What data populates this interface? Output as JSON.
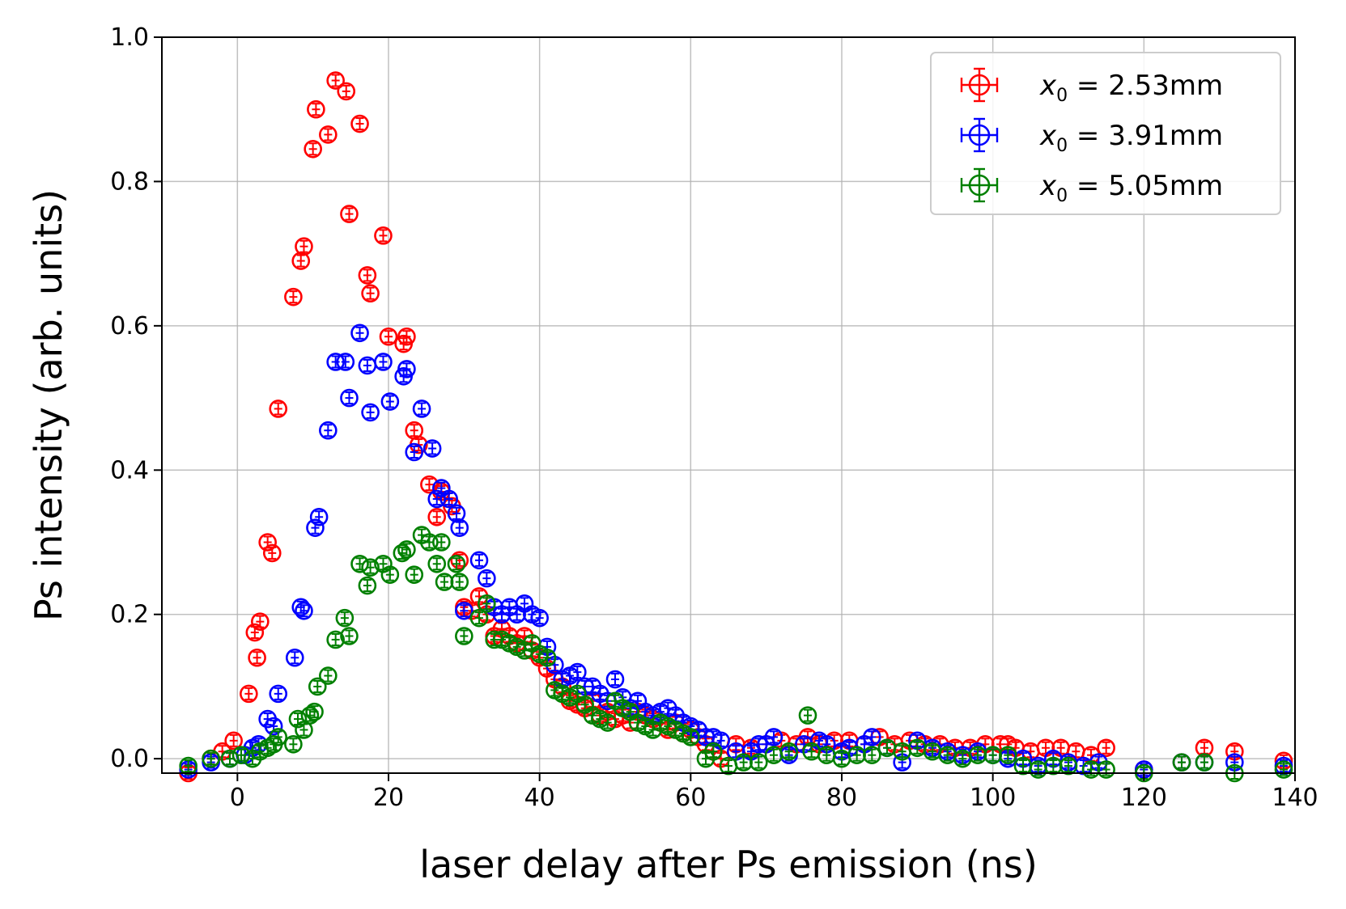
{
  "chart_data": {
    "type": "scatter",
    "title": "",
    "xlabel": "laser delay after Ps emission (ns)",
    "ylabel": "Ps intensity (arb. units)",
    "xlim": [
      -10,
      140
    ],
    "ylim": [
      -0.02,
      1.0
    ],
    "xticks": [
      0,
      20,
      40,
      60,
      80,
      100,
      120,
      140
    ],
    "yticks": [
      0.0,
      0.2,
      0.4,
      0.6,
      0.8,
      1.0
    ],
    "xtick_labels": [
      "0",
      "20",
      "40",
      "60",
      "80",
      "100",
      "120",
      "140"
    ],
    "ytick_labels": [
      "0.0",
      "0.2",
      "0.4",
      "0.6",
      "0.8",
      "1.0"
    ],
    "grid": true,
    "legend_position": "top-right",
    "series": [
      {
        "name": "x0 = 2.53mm",
        "label_var": "x",
        "label_sub": "0",
        "label_rest": " = 2.53mm",
        "color": "#ff0000",
        "points": [
          [
            -6.5,
            -0.02
          ],
          [
            -3.5,
            0.0
          ],
          [
            -2,
            0.01
          ],
          [
            -0.5,
            0.025
          ],
          [
            1.5,
            0.09
          ],
          [
            2.3,
            0.175
          ],
          [
            2.6,
            0.14
          ],
          [
            3,
            0.19
          ],
          [
            4,
            0.3
          ],
          [
            4.6,
            0.285
          ],
          [
            5.4,
            0.485
          ],
          [
            7.4,
            0.64
          ],
          [
            8.4,
            0.69
          ],
          [
            8.8,
            0.71
          ],
          [
            10,
            0.845
          ],
          [
            10.4,
            0.9
          ],
          [
            12,
            0.865
          ],
          [
            13,
            0.94
          ],
          [
            14.4,
            0.925
          ],
          [
            14.8,
            0.755
          ],
          [
            16.2,
            0.88
          ],
          [
            17.2,
            0.67
          ],
          [
            17.6,
            0.645
          ],
          [
            19.3,
            0.725
          ],
          [
            20,
            0.585
          ],
          [
            22,
            0.575
          ],
          [
            22.4,
            0.585
          ],
          [
            23.4,
            0.455
          ],
          [
            24,
            0.435
          ],
          [
            25.4,
            0.38
          ],
          [
            26.4,
            0.335
          ],
          [
            27,
            0.37
          ],
          [
            28.4,
            0.35
          ],
          [
            29.4,
            0.275
          ],
          [
            30,
            0.21
          ],
          [
            31,
            0.205
          ],
          [
            32,
            0.225
          ],
          [
            33,
            0.2
          ],
          [
            34,
            0.17
          ],
          [
            35,
            0.18
          ],
          [
            36,
            0.17
          ],
          [
            37,
            0.16
          ],
          [
            38,
            0.17
          ],
          [
            39,
            0.15
          ],
          [
            40,
            0.14
          ],
          [
            41,
            0.125
          ],
          [
            42,
            0.11
          ],
          [
            43,
            0.1
          ],
          [
            44,
            0.08
          ],
          [
            45,
            0.075
          ],
          [
            46,
            0.07
          ],
          [
            47,
            0.08
          ],
          [
            48,
            0.06
          ],
          [
            49,
            0.065
          ],
          [
            50,
            0.055
          ],
          [
            51,
            0.06
          ],
          [
            52,
            0.05
          ],
          [
            53,
            0.065
          ],
          [
            54,
            0.06
          ],
          [
            55,
            0.055
          ],
          [
            56,
            0.05
          ],
          [
            57,
            0.04
          ],
          [
            58,
            0.05
          ],
          [
            59,
            0.035
          ],
          [
            60,
            0.04
          ],
          [
            61,
            0.03
          ],
          [
            62,
            0.02
          ],
          [
            63,
            0.01
          ],
          [
            64,
            0.0
          ],
          [
            66,
            0.02
          ],
          [
            68,
            0.015
          ],
          [
            70,
            0.02
          ],
          [
            72,
            0.025
          ],
          [
            74,
            0.02
          ],
          [
            75.5,
            0.03
          ],
          [
            77,
            0.02
          ],
          [
            79,
            0.025
          ],
          [
            81,
            0.025
          ],
          [
            83,
            0.02
          ],
          [
            85,
            0.03
          ],
          [
            87,
            0.02
          ],
          [
            89,
            0.025
          ],
          [
            91,
            0.02
          ],
          [
            93,
            0.02
          ],
          [
            95,
            0.015
          ],
          [
            97,
            0.015
          ],
          [
            99,
            0.02
          ],
          [
            101,
            0.02
          ],
          [
            102,
            0.02
          ],
          [
            103,
            0.015
          ],
          [
            105,
            0.01
          ],
          [
            107,
            0.015
          ],
          [
            109,
            0.015
          ],
          [
            111,
            0.01
          ],
          [
            113,
            0.005
          ],
          [
            115,
            0.015
          ],
          [
            120,
            -0.015
          ],
          [
            125,
            -0.005
          ],
          [
            128,
            0.015
          ],
          [
            132,
            0.01
          ],
          [
            138.5,
            -0.003
          ]
        ]
      },
      {
        "name": "x0 = 3.91mm",
        "label_var": "x",
        "label_sub": "0",
        "label_rest": " = 3.91mm",
        "color": "#0000ff",
        "points": [
          [
            -6.5,
            -0.015
          ],
          [
            -3.5,
            -0.005
          ],
          [
            -1,
            0.0
          ],
          [
            1,
            0.005
          ],
          [
            2,
            0.015
          ],
          [
            2.8,
            0.02
          ],
          [
            4,
            0.055
          ],
          [
            4.8,
            0.045
          ],
          [
            5.4,
            0.09
          ],
          [
            7.6,
            0.14
          ],
          [
            8.4,
            0.21
          ],
          [
            8.8,
            0.205
          ],
          [
            10.3,
            0.32
          ],
          [
            10.8,
            0.335
          ],
          [
            12,
            0.455
          ],
          [
            13,
            0.55
          ],
          [
            14.3,
            0.55
          ],
          [
            14.8,
            0.5
          ],
          [
            16.2,
            0.59
          ],
          [
            17.2,
            0.545
          ],
          [
            17.6,
            0.48
          ],
          [
            19.3,
            0.55
          ],
          [
            20.2,
            0.495
          ],
          [
            22,
            0.53
          ],
          [
            22.4,
            0.54
          ],
          [
            23.4,
            0.425
          ],
          [
            24.4,
            0.485
          ],
          [
            25.8,
            0.43
          ],
          [
            26.4,
            0.36
          ],
          [
            27,
            0.375
          ],
          [
            28,
            0.36
          ],
          [
            29,
            0.34
          ],
          [
            29.4,
            0.32
          ],
          [
            30,
            0.205
          ],
          [
            32,
            0.275
          ],
          [
            33,
            0.25
          ],
          [
            34,
            0.21
          ],
          [
            35,
            0.2
          ],
          [
            36,
            0.21
          ],
          [
            37,
            0.2
          ],
          [
            38,
            0.215
          ],
          [
            39,
            0.2
          ],
          [
            40,
            0.195
          ],
          [
            41,
            0.155
          ],
          [
            42,
            0.13
          ],
          [
            43,
            0.11
          ],
          [
            44,
            0.115
          ],
          [
            45,
            0.12
          ],
          [
            46,
            0.1
          ],
          [
            47,
            0.1
          ],
          [
            48,
            0.09
          ],
          [
            49,
            0.08
          ],
          [
            50,
            0.11
          ],
          [
            51,
            0.085
          ],
          [
            52,
            0.07
          ],
          [
            53,
            0.08
          ],
          [
            54,
            0.065
          ],
          [
            55,
            0.06
          ],
          [
            56,
            0.065
          ],
          [
            57,
            0.07
          ],
          [
            58,
            0.06
          ],
          [
            59,
            0.05
          ],
          [
            60,
            0.045
          ],
          [
            61,
            0.04
          ],
          [
            62,
            0.03
          ],
          [
            63,
            0.03
          ],
          [
            64,
            0.025
          ],
          [
            66,
            0.01
          ],
          [
            68,
            0.01
          ],
          [
            69,
            0.02
          ],
          [
            70,
            0.02
          ],
          [
            71,
            0.03
          ],
          [
            73,
            0.005
          ],
          [
            75,
            0.02
          ],
          [
            77,
            0.025
          ],
          [
            78,
            0.02
          ],
          [
            80,
            0.01
          ],
          [
            81,
            0.015
          ],
          [
            83,
            0.02
          ],
          [
            84,
            0.03
          ],
          [
            86,
            0.015
          ],
          [
            88,
            -0.005
          ],
          [
            90,
            0.025
          ],
          [
            92,
            0.015
          ],
          [
            94,
            0.01
          ],
          [
            96,
            0.005
          ],
          [
            98,
            0.01
          ],
          [
            100,
            0.005
          ],
          [
            102,
            0.0
          ],
          [
            104,
            0.0
          ],
          [
            106,
            -0.01
          ],
          [
            108,
            0.0
          ],
          [
            110,
            -0.005
          ],
          [
            112,
            -0.01
          ],
          [
            114,
            -0.005
          ],
          [
            120,
            -0.015
          ],
          [
            125,
            -0.005
          ],
          [
            128,
            -0.005
          ],
          [
            132,
            -0.005
          ],
          [
            138.5,
            -0.01
          ]
        ]
      },
      {
        "name": "x0 = 5.05mm",
        "label_var": "x",
        "label_sub": "0",
        "label_rest": " = 5.05mm",
        "color": "#008000",
        "points": [
          [
            -6.5,
            -0.01
          ],
          [
            -3.5,
            0.0
          ],
          [
            -1,
            0.0
          ],
          [
            0.5,
            0.005
          ],
          [
            2,
            0.0
          ],
          [
            3,
            0.01
          ],
          [
            4,
            0.015
          ],
          [
            4.8,
            0.02
          ],
          [
            5.4,
            0.03
          ],
          [
            7.4,
            0.02
          ],
          [
            8,
            0.055
          ],
          [
            8.8,
            0.04
          ],
          [
            9.6,
            0.06
          ],
          [
            10.2,
            0.065
          ],
          [
            10.6,
            0.1
          ],
          [
            12,
            0.115
          ],
          [
            13,
            0.165
          ],
          [
            14.2,
            0.195
          ],
          [
            14.8,
            0.17
          ],
          [
            16.2,
            0.27
          ],
          [
            17.2,
            0.24
          ],
          [
            17.6,
            0.265
          ],
          [
            19.3,
            0.27
          ],
          [
            20.2,
            0.255
          ],
          [
            21.8,
            0.285
          ],
          [
            22.4,
            0.29
          ],
          [
            23.4,
            0.255
          ],
          [
            24.4,
            0.31
          ],
          [
            25.4,
            0.3
          ],
          [
            26.4,
            0.27
          ],
          [
            27,
            0.3
          ],
          [
            27.4,
            0.245
          ],
          [
            29,
            0.27
          ],
          [
            29.4,
            0.245
          ],
          [
            30,
            0.17
          ],
          [
            32,
            0.195
          ],
          [
            33,
            0.215
          ],
          [
            34,
            0.165
          ],
          [
            35,
            0.165
          ],
          [
            36,
            0.16
          ],
          [
            37,
            0.155
          ],
          [
            38,
            0.15
          ],
          [
            39,
            0.16
          ],
          [
            40,
            0.145
          ],
          [
            41,
            0.14
          ],
          [
            42,
            0.095
          ],
          [
            43,
            0.09
          ],
          [
            44,
            0.085
          ],
          [
            45,
            0.09
          ],
          [
            46,
            0.075
          ],
          [
            47,
            0.06
          ],
          [
            48,
            0.055
          ],
          [
            49,
            0.05
          ],
          [
            50,
            0.08
          ],
          [
            51,
            0.07
          ],
          [
            52,
            0.065
          ],
          [
            53,
            0.05
          ],
          [
            54,
            0.045
          ],
          [
            55,
            0.04
          ],
          [
            56,
            0.05
          ],
          [
            57,
            0.045
          ],
          [
            58,
            0.04
          ],
          [
            59,
            0.035
          ],
          [
            60,
            0.03
          ],
          [
            62,
            0.0
          ],
          [
            63,
            0.01
          ],
          [
            65,
            -0.01
          ],
          [
            67,
            -0.005
          ],
          [
            69,
            -0.005
          ],
          [
            71,
            0.005
          ],
          [
            73,
            0.01
          ],
          [
            75.5,
            0.06
          ],
          [
            76,
            0.01
          ],
          [
            78,
            0.005
          ],
          [
            80,
            0.0
          ],
          [
            82,
            0.005
          ],
          [
            84,
            0.005
          ],
          [
            86,
            0.015
          ],
          [
            88,
            0.01
          ],
          [
            90,
            0.015
          ],
          [
            92,
            0.01
          ],
          [
            94,
            0.005
          ],
          [
            96,
            0.0
          ],
          [
            98,
            0.005
          ],
          [
            100,
            0.005
          ],
          [
            102,
            0.005
          ],
          [
            104,
            -0.01
          ],
          [
            106,
            -0.015
          ],
          [
            108,
            -0.01
          ],
          [
            110,
            -0.01
          ],
          [
            113,
            -0.015
          ],
          [
            115,
            -0.015
          ],
          [
            120,
            -0.02
          ],
          [
            125,
            -0.005
          ],
          [
            128,
            -0.005
          ],
          [
            132,
            -0.02
          ],
          [
            138.5,
            -0.015
          ]
        ]
      }
    ]
  }
}
